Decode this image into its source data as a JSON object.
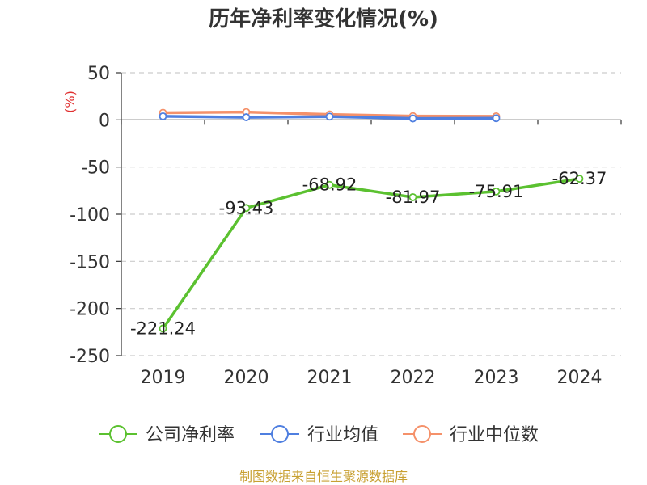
{
  "chart_data": {
    "type": "line",
    "title": "历年净利率变化情况(%)",
    "unit_label": "(%)",
    "categories": [
      "2019",
      "2020",
      "2021",
      "2022",
      "2023",
      "2024"
    ],
    "ylim": [
      -250,
      50
    ],
    "yticks": [
      50,
      0,
      -50,
      -100,
      -150,
      -200,
      -250
    ],
    "grid": true,
    "legend_position": "bottom",
    "series": [
      {
        "name": "公司净利率",
        "color": "#5bc130",
        "values": [
          -221.24,
          -93.43,
          -68.92,
          -81.97,
          -75.91,
          -62.37
        ],
        "labels": [
          "-221.24",
          "-93.43",
          "-68.92",
          "-81.97",
          "-75.91",
          "-62.37"
        ]
      },
      {
        "name": "行业均值",
        "color": "#4f7fe0",
        "values": [
          3.8,
          2.8,
          3.5,
          1.5,
          1.8,
          null
        ]
      },
      {
        "name": "行业中位数",
        "color": "#f5916a",
        "values": [
          7.6,
          8.3,
          5.8,
          4.0,
          3.8,
          null
        ]
      }
    ]
  },
  "unit_color": "#e03030",
  "source_text": "制图数据来自恒生聚源数据库",
  "source_color": "#c8a032"
}
